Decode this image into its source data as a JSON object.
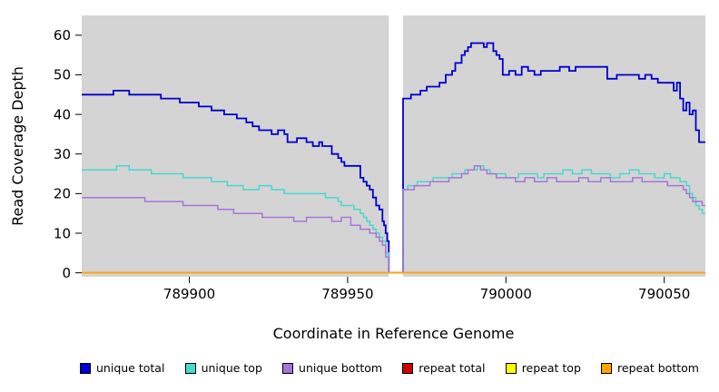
{
  "figure": {
    "plot_bg": "#d4d4d4",
    "mask_color": "#ffffff"
  },
  "chart_data": {
    "type": "line",
    "subtype": "step",
    "title": "",
    "xlabel": "Coordinate in Reference Genome",
    "ylabel": "Read Coverage Depth",
    "xlim": [
      789866,
      790063
    ],
    "ylim": [
      -1,
      65
    ],
    "xticks": [
      789900,
      789950,
      790000,
      790050
    ],
    "yticks": [
      0,
      10,
      20,
      30,
      40,
      50,
      60
    ],
    "grid": false,
    "legend_position": "bottom",
    "gap_region": {
      "x_start": 789963,
      "x_end": 789967.5
    },
    "series": [
      {
        "name": "unique total",
        "color": "#0000cd",
        "lw": 1.8,
        "points": [
          [
            789866,
            45
          ],
          [
            789874,
            45
          ],
          [
            789876,
            46
          ],
          [
            789880,
            46
          ],
          [
            789881,
            45
          ],
          [
            789889,
            45
          ],
          [
            789891,
            44
          ],
          [
            789896,
            44
          ],
          [
            789897,
            43
          ],
          [
            789902,
            43
          ],
          [
            789903,
            42
          ],
          [
            789906,
            42
          ],
          [
            789907,
            41
          ],
          [
            789910,
            41
          ],
          [
            789911,
            40
          ],
          [
            789914,
            40
          ],
          [
            789915,
            39
          ],
          [
            789917,
            39
          ],
          [
            789918,
            38
          ],
          [
            789920,
            37
          ],
          [
            789922,
            36
          ],
          [
            789925,
            36
          ],
          [
            789926,
            35
          ],
          [
            789928,
            36
          ],
          [
            789930,
            35
          ],
          [
            789931,
            33
          ],
          [
            789933,
            33
          ],
          [
            789934,
            34
          ],
          [
            789936,
            34
          ],
          [
            789937,
            33
          ],
          [
            789939,
            32
          ],
          [
            789941,
            33
          ],
          [
            789942,
            32
          ],
          [
            789944,
            32
          ],
          [
            789945,
            30
          ],
          [
            789947,
            29
          ],
          [
            789948,
            28
          ],
          [
            789949,
            27
          ],
          [
            789953,
            27
          ],
          [
            789954,
            24
          ],
          [
            789955,
            23
          ],
          [
            789956,
            22
          ],
          [
            789957,
            21
          ],
          [
            789958,
            19
          ],
          [
            789959,
            17
          ],
          [
            789960,
            16
          ],
          [
            789961,
            13
          ],
          [
            789961.5,
            12
          ],
          [
            789962,
            10
          ],
          [
            789962.5,
            8
          ],
          [
            789963,
            0
          ],
          [
            789967,
            0
          ],
          [
            789967.5,
            44
          ],
          [
            789969,
            44
          ],
          [
            789970,
            45
          ],
          [
            789972,
            45
          ],
          [
            789973,
            46
          ],
          [
            789975,
            47
          ],
          [
            789977,
            47
          ],
          [
            789979,
            48
          ],
          [
            789980,
            48
          ],
          [
            789981,
            50
          ],
          [
            789983,
            51
          ],
          [
            789984,
            53
          ],
          [
            789986,
            55
          ],
          [
            789987,
            56
          ],
          [
            789988,
            57
          ],
          [
            789989,
            58
          ],
          [
            789992,
            58
          ],
          [
            789993,
            57
          ],
          [
            789994,
            58
          ],
          [
            789996,
            56
          ],
          [
            789997,
            55
          ],
          [
            789998,
            54
          ],
          [
            789999,
            50
          ],
          [
            790001,
            51
          ],
          [
            790003,
            50
          ],
          [
            790005,
            52
          ],
          [
            790007,
            51
          ],
          [
            790009,
            50
          ],
          [
            790011,
            51
          ],
          [
            790015,
            51
          ],
          [
            790017,
            52
          ],
          [
            790020,
            51
          ],
          [
            790022,
            52
          ],
          [
            790030,
            52
          ],
          [
            790032,
            49
          ],
          [
            790035,
            50
          ],
          [
            790040,
            50
          ],
          [
            790042,
            49
          ],
          [
            790044,
            50
          ],
          [
            790046,
            49
          ],
          [
            790048,
            48
          ],
          [
            790052,
            48
          ],
          [
            790053,
            46
          ],
          [
            790054,
            48
          ],
          [
            790055,
            44
          ],
          [
            790056,
            41
          ],
          [
            790057,
            43
          ],
          [
            790058,
            40
          ],
          [
            790059,
            41
          ],
          [
            790060,
            36
          ],
          [
            790061,
            33
          ],
          [
            790063,
            33
          ]
        ]
      },
      {
        "name": "unique top",
        "color": "#48d8ce",
        "lw": 1.5,
        "points": [
          [
            789866,
            26
          ],
          [
            789875,
            26
          ],
          [
            789877,
            27
          ],
          [
            789880,
            27
          ],
          [
            789881,
            26
          ],
          [
            789886,
            26
          ],
          [
            789888,
            25
          ],
          [
            789897,
            25
          ],
          [
            789898,
            24
          ],
          [
            789906,
            24
          ],
          [
            789907,
            23
          ],
          [
            789911,
            23
          ],
          [
            789912,
            22
          ],
          [
            789916,
            22
          ],
          [
            789917,
            21
          ],
          [
            789921,
            21
          ],
          [
            789922,
            22
          ],
          [
            789925,
            22
          ],
          [
            789926,
            21
          ],
          [
            789929,
            21
          ],
          [
            789930,
            20
          ],
          [
            789941,
            20
          ],
          [
            789943,
            19
          ],
          [
            789946,
            19
          ],
          [
            789947,
            18
          ],
          [
            789948,
            17
          ],
          [
            789951,
            17
          ],
          [
            789952,
            16
          ],
          [
            789954,
            15
          ],
          [
            789955,
            14
          ],
          [
            789956,
            13
          ],
          [
            789957,
            12
          ],
          [
            789958,
            11
          ],
          [
            789959,
            10
          ],
          [
            789960,
            9
          ],
          [
            789961,
            8
          ],
          [
            789962,
            5
          ],
          [
            789963,
            0
          ],
          [
            789967,
            0
          ],
          [
            789967.5,
            21
          ],
          [
            789969,
            22
          ],
          [
            789971,
            22
          ],
          [
            789972,
            23
          ],
          [
            789976,
            23
          ],
          [
            789977,
            24
          ],
          [
            789981,
            24
          ],
          [
            789983,
            25
          ],
          [
            789986,
            25
          ],
          [
            789987,
            26
          ],
          [
            789990,
            26
          ],
          [
            789991,
            27
          ],
          [
            789993,
            26
          ],
          [
            789995,
            25
          ],
          [
            789998,
            25
          ],
          [
            790000,
            24
          ],
          [
            790004,
            25
          ],
          [
            790008,
            25
          ],
          [
            790010,
            24
          ],
          [
            790012,
            25
          ],
          [
            790016,
            25
          ],
          [
            790018,
            26
          ],
          [
            790021,
            25
          ],
          [
            790024,
            26
          ],
          [
            790027,
            25
          ],
          [
            790030,
            25
          ],
          [
            790033,
            24
          ],
          [
            790036,
            25
          ],
          [
            790039,
            26
          ],
          [
            790041,
            26
          ],
          [
            790042,
            25
          ],
          [
            790045,
            25
          ],
          [
            790047,
            24
          ],
          [
            790050,
            25
          ],
          [
            790052,
            24
          ],
          [
            790054,
            24
          ],
          [
            790055,
            23
          ],
          [
            790057,
            22
          ],
          [
            790058,
            20
          ],
          [
            790059,
            19
          ],
          [
            790060,
            17
          ],
          [
            790061,
            16
          ],
          [
            790062,
            15
          ],
          [
            790063,
            15
          ]
        ]
      },
      {
        "name": "unique bottom",
        "color": "#a875d8",
        "lw": 1.5,
        "points": [
          [
            789866,
            19
          ],
          [
            789884,
            19
          ],
          [
            789886,
            18
          ],
          [
            789897,
            18
          ],
          [
            789898,
            17
          ],
          [
            789908,
            17
          ],
          [
            789909,
            16
          ],
          [
            789913,
            16
          ],
          [
            789914,
            15
          ],
          [
            789922,
            15
          ],
          [
            789923,
            14
          ],
          [
            789932,
            14
          ],
          [
            789933,
            13
          ],
          [
            789936,
            13
          ],
          [
            789937,
            14
          ],
          [
            789944,
            14
          ],
          [
            789945,
            13
          ],
          [
            789947,
            13
          ],
          [
            789948,
            14
          ],
          [
            789950,
            14
          ],
          [
            789951,
            12
          ],
          [
            789953,
            12
          ],
          [
            789954,
            11
          ],
          [
            789956,
            11
          ],
          [
            789957,
            10
          ],
          [
            789958,
            10
          ],
          [
            789959,
            9
          ],
          [
            789960,
            8
          ],
          [
            789961,
            7
          ],
          [
            789962,
            4
          ],
          [
            789963,
            0
          ],
          [
            789967,
            0
          ],
          [
            789967.5,
            21
          ],
          [
            789970,
            21
          ],
          [
            789971,
            22
          ],
          [
            789975,
            22
          ],
          [
            789976,
            23
          ],
          [
            789980,
            23
          ],
          [
            789982,
            24
          ],
          [
            789985,
            24
          ],
          [
            789986,
            25
          ],
          [
            789988,
            26
          ],
          [
            789990,
            27
          ],
          [
            789992,
            26
          ],
          [
            789994,
            25
          ],
          [
            789997,
            24
          ],
          [
            790000,
            24
          ],
          [
            790003,
            23
          ],
          [
            790006,
            24
          ],
          [
            790009,
            23
          ],
          [
            790013,
            24
          ],
          [
            790016,
            23
          ],
          [
            790020,
            23
          ],
          [
            790023,
            24
          ],
          [
            790026,
            23
          ],
          [
            790030,
            24
          ],
          [
            790033,
            23
          ],
          [
            790037,
            23
          ],
          [
            790040,
            24
          ],
          [
            790043,
            23
          ],
          [
            790048,
            23
          ],
          [
            790051,
            22
          ],
          [
            790054,
            22
          ],
          [
            790056,
            21
          ],
          [
            790057,
            20
          ],
          [
            790058,
            19
          ],
          [
            790059,
            18
          ],
          [
            790060,
            18
          ],
          [
            790062,
            17
          ],
          [
            790063,
            17
          ]
        ]
      },
      {
        "name": "repeat total",
        "color": "#cc0000",
        "lw": 1.5,
        "points": [
          [
            789866,
            0
          ],
          [
            790063,
            0
          ]
        ]
      },
      {
        "name": "repeat top",
        "color": "#ffff00",
        "lw": 1.5,
        "points": [
          [
            789866,
            0
          ],
          [
            790063,
            0
          ]
        ]
      },
      {
        "name": "repeat bottom",
        "color": "#ffa500",
        "lw": 1.8,
        "points": [
          [
            789866,
            0
          ],
          [
            790063,
            0
          ]
        ]
      }
    ]
  }
}
